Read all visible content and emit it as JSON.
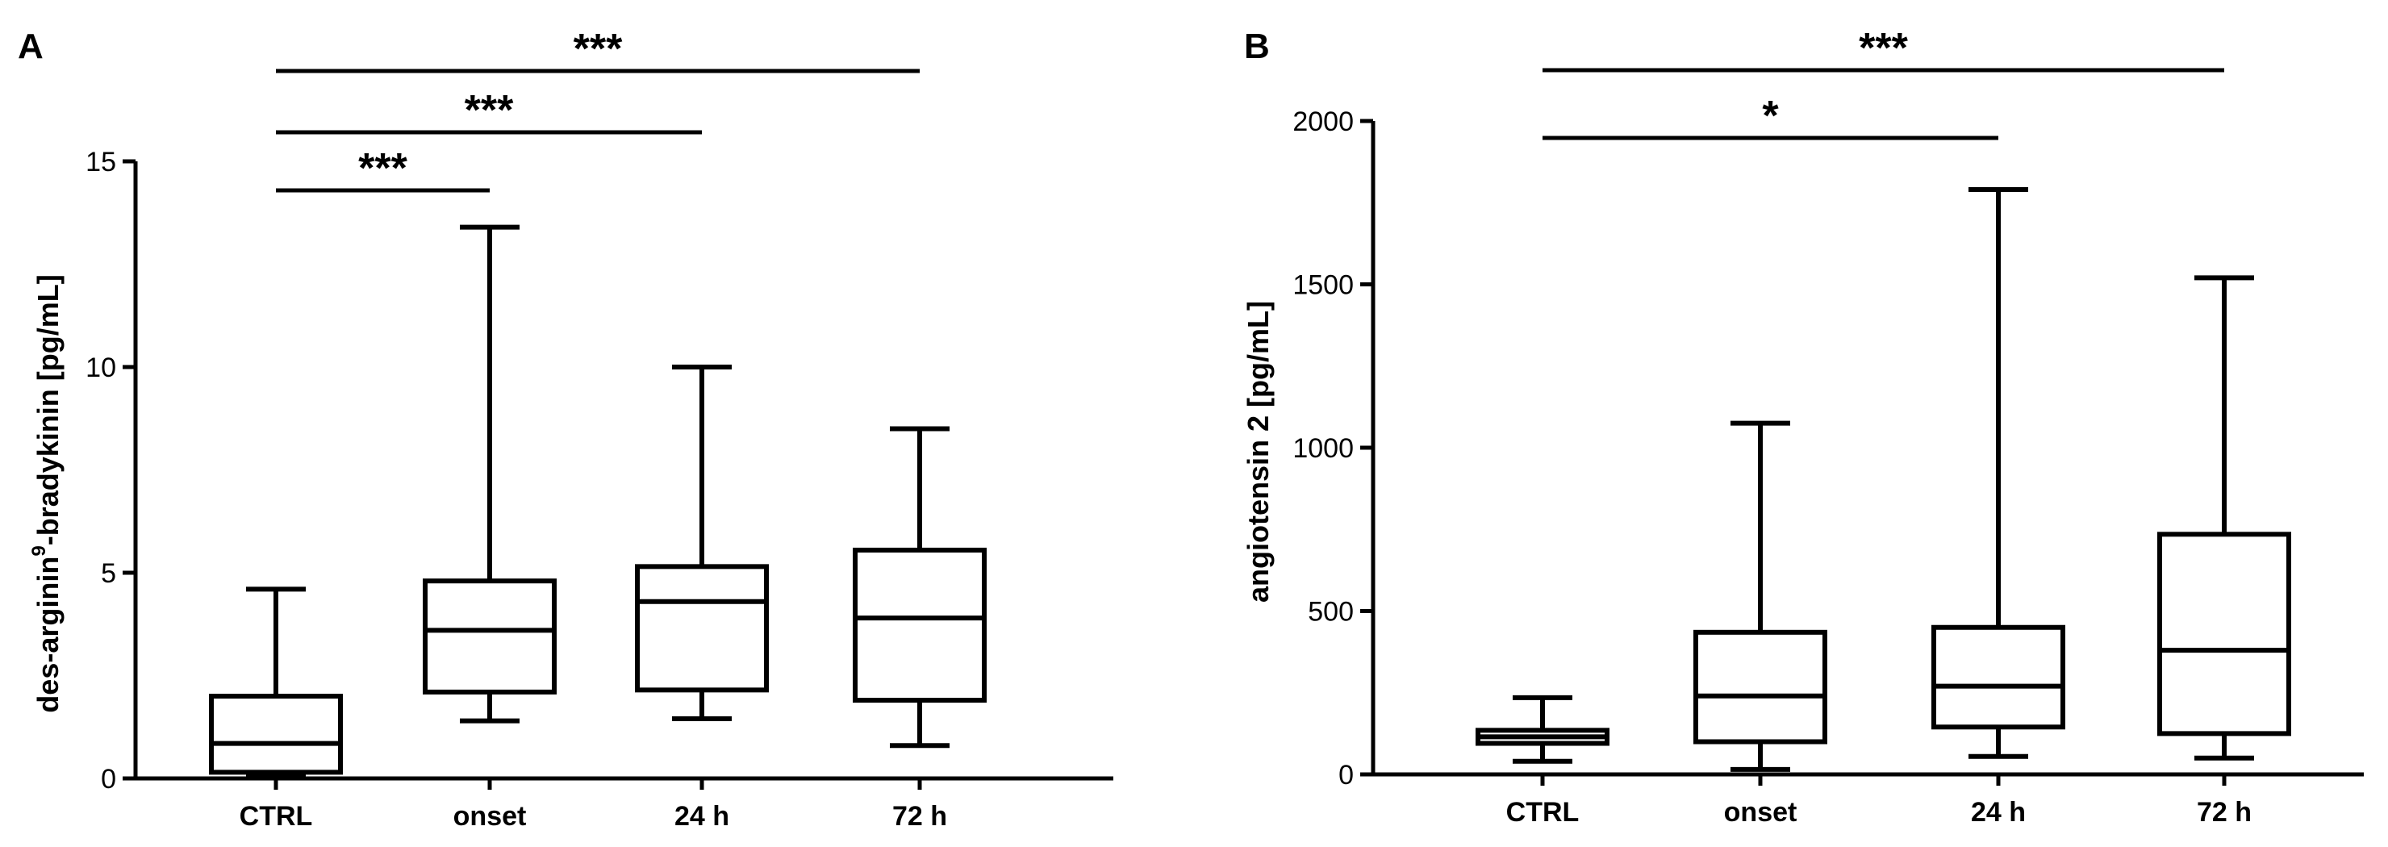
{
  "chart_data": [
    {
      "type": "box",
      "panel_label": "A",
      "title": "",
      "xlabel": "",
      "ylabel_parts": [
        "des-arginin",
        "9",
        "-bradykinin [pg/mL]"
      ],
      "ylim": [
        0,
        15
      ],
      "yticks": [
        0,
        5,
        10,
        15
      ],
      "ytick_labels": [
        "0",
        "5",
        "10",
        "15"
      ],
      "grid": false,
      "categories": [
        "CTRL",
        "onset",
        "24 h",
        "72 h"
      ],
      "boxes": [
        {
          "min": 0.05,
          "q1": 0.15,
          "median": 0.85,
          "q3": 2.0,
          "max": 4.6
        },
        {
          "min": 1.4,
          "q1": 2.1,
          "median": 3.6,
          "q3": 4.8,
          "max": 13.4
        },
        {
          "min": 1.45,
          "q1": 2.15,
          "median": 4.3,
          "q3": 5.15,
          "max": 10.0
        },
        {
          "min": 0.8,
          "q1": 1.9,
          "median": 3.9,
          "q3": 5.55,
          "max": 8.5
        }
      ],
      "significance": [
        {
          "from": 0,
          "to": 1,
          "label": "***",
          "level": 0
        },
        {
          "from": 0,
          "to": 2,
          "label": "***",
          "level": 1
        },
        {
          "from": 0,
          "to": 3,
          "label": "***",
          "level": 2
        }
      ]
    },
    {
      "type": "box",
      "panel_label": "B",
      "title": "",
      "xlabel": "",
      "ylabel_parts": [
        "angiotensin 2 [pg/mL]",
        "",
        ""
      ],
      "ylim": [
        0,
        2000
      ],
      "yticks": [
        0,
        500,
        1000,
        1500,
        2000
      ],
      "ytick_labels": [
        "0",
        "500",
        "1000",
        "1500",
        "2000"
      ],
      "grid": false,
      "categories": [
        "CTRL",
        "onset",
        "24 h",
        "72 h"
      ],
      "boxes": [
        {
          "min": 40,
          "q1": 95,
          "median": 115,
          "q3": 135,
          "max": 235
        },
        {
          "min": 15,
          "q1": 100,
          "median": 240,
          "q3": 435,
          "max": 1075
        },
        {
          "min": 55,
          "q1": 145,
          "median": 270,
          "q3": 450,
          "max": 1790
        },
        {
          "min": 50,
          "q1": 125,
          "median": 380,
          "q3": 735,
          "max": 1520
        }
      ],
      "significance": [
        {
          "from": 0,
          "to": 2,
          "label": "*",
          "level": 0
        },
        {
          "from": 0,
          "to": 3,
          "label": "***",
          "level": 1
        }
      ]
    }
  ]
}
